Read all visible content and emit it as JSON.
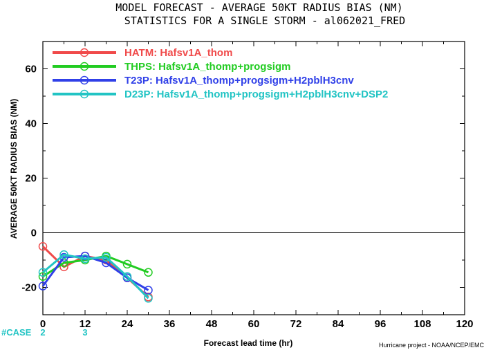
{
  "chart_data": {
    "type": "line",
    "title": "MODEL FORECAST - AVERAGE 50KT RADIUS BIAS (NM)",
    "subtitle": "STATISTICS FOR A SINGLE STORM - al062021_FRED",
    "xlabel": "Forecast lead time (hr)",
    "ylabel": "AVERAGE 50KT RADIUS BIAS (NM)",
    "credit": "Hurricane project - NOAA/NCEP/EMC",
    "xlim": [
      0,
      120
    ],
    "ylim": [
      -30,
      70
    ],
    "xticks": [
      0,
      12,
      24,
      36,
      48,
      60,
      72,
      84,
      96,
      108,
      120
    ],
    "yticks": [
      -20,
      0,
      20,
      40,
      60
    ],
    "x": [
      0,
      6,
      12,
      18,
      24,
      30
    ],
    "series": [
      {
        "name": "HATM: Hafsv1A_thom",
        "color": "#f04a4a",
        "values": [
          -5,
          -12.5,
          -8.5,
          -10,
          -16.5,
          -23.5
        ]
      },
      {
        "name": "THPS: Hafsv1A_thomp+progsigm",
        "color": "#22cc22",
        "values": [
          -16,
          -11,
          -10,
          -8.5,
          -11.5,
          -14.5
        ]
      },
      {
        "name": "T23P: Hafsv1A_thomp+progsigm+H2pblH3cnv",
        "color": "#3040e8",
        "values": [
          -19.5,
          -9,
          -8.5,
          -11,
          -16.5,
          -21
        ]
      },
      {
        "name": "D23P: Hafsv1A_thomp+progsigm+H2pblH3cnv+DSP2",
        "color": "#22c4c4",
        "values": [
          -14.5,
          -8,
          -9.5,
          -9,
          -16,
          -24
        ]
      }
    ],
    "zero_line": true,
    "case_label": "#CASE",
    "case_label_color": "#22c4c4",
    "cases": [
      {
        "x": 0,
        "count": "2"
      },
      {
        "x": 12,
        "count": "3"
      }
    ]
  }
}
